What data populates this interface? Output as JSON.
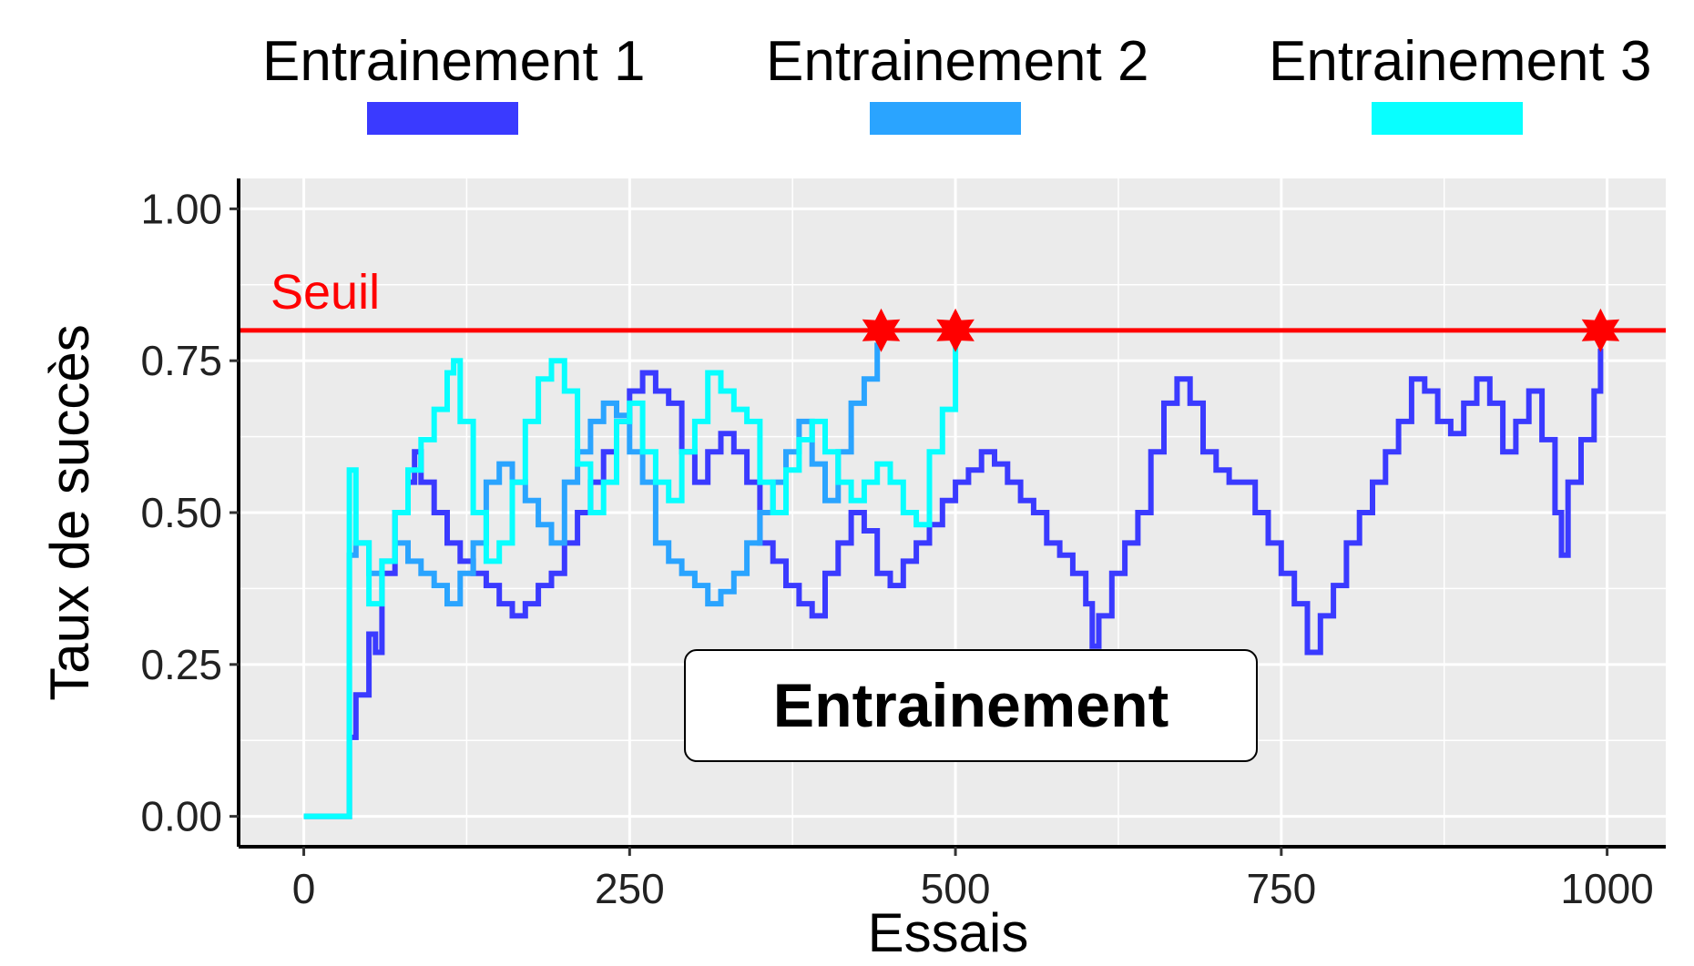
{
  "chart_data": {
    "type": "line",
    "xlabel": "Essais",
    "ylabel": "Taux de succès",
    "xlim": [
      -50,
      1045
    ],
    "ylim": [
      -0.05,
      1.05
    ],
    "x_ticks": [
      0,
      250,
      500,
      750,
      1000
    ],
    "x_tick_labels": [
      "0",
      "250",
      "500",
      "750",
      "1000"
    ],
    "y_ticks": [
      0,
      0.25,
      0.5,
      0.75,
      1.0
    ],
    "y_tick_labels": [
      "0.00",
      "0.25",
      "0.50",
      "0.75",
      "1.00"
    ],
    "grid": true,
    "legend_position": "top",
    "threshold": {
      "label": "Seuil",
      "value": 0.8,
      "color": "#ff0000"
    },
    "annotation": "Entrainement",
    "series": [
      {
        "name": "Entrainement 1",
        "color": "#3a3aff",
        "x": [
          0,
          30,
          35,
          40,
          50,
          55,
          60,
          70,
          80,
          85,
          90,
          100,
          110,
          120,
          130,
          140,
          150,
          160,
          170,
          180,
          190,
          200,
          210,
          220,
          230,
          240,
          250,
          260,
          270,
          280,
          290,
          300,
          310,
          320,
          330,
          340,
          350,
          360,
          370,
          380,
          390,
          400,
          410,
          420,
          430,
          440,
          450,
          460,
          470,
          480,
          490,
          500,
          510,
          520,
          530,
          540,
          550,
          560,
          570,
          580,
          590,
          600,
          605,
          610,
          620,
          630,
          640,
          650,
          660,
          670,
          680,
          690,
          700,
          710,
          720,
          730,
          740,
          750,
          760,
          770,
          780,
          790,
          800,
          810,
          820,
          830,
          840,
          850,
          860,
          870,
          880,
          890,
          900,
          910,
          920,
          930,
          940,
          950,
          960,
          965,
          970,
          980,
          990,
          995
        ],
        "y": [
          0,
          0,
          0.13,
          0.2,
          0.3,
          0.27,
          0.4,
          0.5,
          0.55,
          0.6,
          0.55,
          0.5,
          0.45,
          0.42,
          0.4,
          0.38,
          0.35,
          0.33,
          0.35,
          0.38,
          0.4,
          0.45,
          0.5,
          0.55,
          0.6,
          0.65,
          0.7,
          0.73,
          0.7,
          0.68,
          0.6,
          0.55,
          0.6,
          0.63,
          0.6,
          0.55,
          0.45,
          0.42,
          0.38,
          0.35,
          0.33,
          0.4,
          0.45,
          0.5,
          0.47,
          0.4,
          0.38,
          0.42,
          0.45,
          0.48,
          0.52,
          0.55,
          0.57,
          0.6,
          0.58,
          0.55,
          0.52,
          0.5,
          0.45,
          0.43,
          0.4,
          0.35,
          0.28,
          0.33,
          0.4,
          0.45,
          0.5,
          0.6,
          0.68,
          0.72,
          0.68,
          0.6,
          0.57,
          0.55,
          0.55,
          0.5,
          0.45,
          0.4,
          0.35,
          0.27,
          0.33,
          0.38,
          0.45,
          0.5,
          0.55,
          0.6,
          0.65,
          0.72,
          0.7,
          0.65,
          0.63,
          0.68,
          0.72,
          0.68,
          0.6,
          0.65,
          0.7,
          0.62,
          0.5,
          0.43,
          0.55,
          0.62,
          0.7,
          0.77
        ]
      },
      {
        "name": "Entrainement 2",
        "color": "#2aa4ff",
        "x": [
          0,
          30,
          35,
          40,
          50,
          60,
          70,
          80,
          90,
          100,
          110,
          120,
          130,
          140,
          150,
          160,
          170,
          180,
          190,
          200,
          210,
          220,
          230,
          240,
          250,
          260,
          270,
          280,
          290,
          300,
          310,
          320,
          330,
          340,
          350,
          360,
          370,
          380,
          390,
          400,
          410,
          420,
          430,
          440
        ],
        "y": [
          0,
          0,
          0.43,
          0.45,
          0.4,
          0.42,
          0.45,
          0.42,
          0.4,
          0.38,
          0.35,
          0.4,
          0.45,
          0.55,
          0.58,
          0.55,
          0.52,
          0.48,
          0.45,
          0.55,
          0.6,
          0.65,
          0.68,
          0.66,
          0.6,
          0.55,
          0.45,
          0.42,
          0.4,
          0.38,
          0.35,
          0.37,
          0.4,
          0.45,
          0.5,
          0.55,
          0.6,
          0.65,
          0.58,
          0.52,
          0.6,
          0.68,
          0.72,
          0.78
        ]
      },
      {
        "name": "Entrainement 3",
        "color": "#08ffff",
        "x": [
          0,
          30,
          35,
          40,
          50,
          60,
          70,
          80,
          90,
          100,
          110,
          115,
          120,
          130,
          140,
          150,
          160,
          170,
          180,
          190,
          200,
          210,
          220,
          230,
          240,
          250,
          260,
          270,
          280,
          290,
          300,
          310,
          320,
          330,
          340,
          350,
          360,
          370,
          380,
          390,
          400,
          410,
          420,
          430,
          440,
          450,
          460,
          470,
          480,
          490,
          500
        ],
        "y": [
          0,
          0,
          0.57,
          0.45,
          0.35,
          0.42,
          0.5,
          0.57,
          0.62,
          0.67,
          0.73,
          0.75,
          0.65,
          0.5,
          0.42,
          0.45,
          0.55,
          0.65,
          0.72,
          0.75,
          0.7,
          0.58,
          0.5,
          0.55,
          0.65,
          0.68,
          0.6,
          0.55,
          0.52,
          0.6,
          0.65,
          0.73,
          0.7,
          0.67,
          0.65,
          0.55,
          0.5,
          0.57,
          0.62,
          0.65,
          0.6,
          0.55,
          0.52,
          0.55,
          0.58,
          0.55,
          0.5,
          0.48,
          0.6,
          0.67,
          0.78
        ]
      }
    ],
    "markers": [
      {
        "series": "Entrainement 2",
        "x": 443,
        "y": 0.8
      },
      {
        "series": "Entrainement 3",
        "x": 500,
        "y": 0.8
      },
      {
        "series": "Entrainement 1",
        "x": 995,
        "y": 0.8
      }
    ]
  },
  "colors": {
    "panel_bg": "#ebebeb",
    "grid": "#ffffff",
    "axis": "#000000",
    "marker": "#ff0000"
  }
}
